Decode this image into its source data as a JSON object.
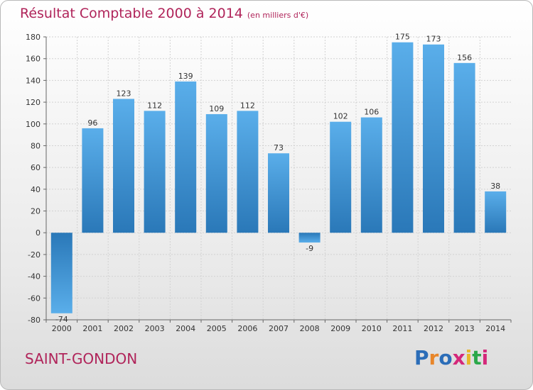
{
  "header": {
    "title": "Résultat Comptable 2000 à 2014",
    "subtitle": "(en milliers d'€)"
  },
  "footer": {
    "commune": "SAINT-GONDON",
    "logo": "Proxiti",
    "logo_colors": [
      "#2b6db8",
      "#e8862a",
      "#2b6db8",
      "#d4287a",
      "#e8b62a",
      "#2ba84a",
      "#d4287a"
    ]
  },
  "chart_data": {
    "type": "bar",
    "title": "Résultat Comptable 2000 à 2014",
    "subtitle": "(en milliers d'€)",
    "xlabel": "",
    "ylabel": "",
    "categories": [
      "2000",
      "2001",
      "2002",
      "2003",
      "2004",
      "2005",
      "2006",
      "2007",
      "2008",
      "2009",
      "2010",
      "2011",
      "2012",
      "2013",
      "2014"
    ],
    "values": [
      -74,
      96,
      123,
      112,
      139,
      109,
      112,
      73,
      -9,
      102,
      106,
      175,
      173,
      156,
      38
    ],
    "ylim": [
      -80,
      180
    ],
    "yticks": [
      -80,
      -60,
      -40,
      -20,
      0,
      20,
      40,
      60,
      80,
      100,
      120,
      140,
      160,
      180
    ],
    "grid": true,
    "bar_color_top": "#5aaeea",
    "bar_color_bottom": "#2a78b8"
  }
}
